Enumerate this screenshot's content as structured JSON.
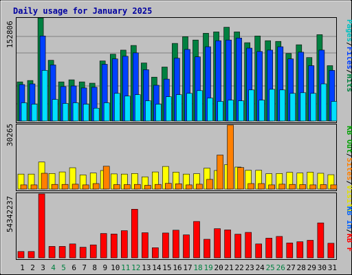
{
  "chart_data": [
    {
      "type": "bar",
      "title": "Daily usage for January 2025",
      "categories": [
        "1",
        "2",
        "3",
        "4",
        "5",
        "6",
        "7",
        "8",
        "9",
        "10",
        "11",
        "12",
        "13",
        "14",
        "15",
        "16",
        "17",
        "18",
        "19",
        "20",
        "21",
        "22",
        "23",
        "24",
        "25",
        "26",
        "27",
        "28",
        "29",
        "30",
        "31"
      ],
      "weekend_days": [
        "4",
        "5",
        "11",
        "12",
        "18",
        "19",
        "25",
        "26"
      ],
      "ytick_label": "152806",
      "ylim": [
        0,
        152806
      ],
      "series": [
        {
          "name": "Hits",
          "color": "#008040",
          "values": [
            58000,
            60000,
            152806,
            90000,
            58000,
            61000,
            58000,
            56000,
            89000,
            99000,
            105000,
            112000,
            86000,
            65000,
            80000,
            115000,
            125000,
            120000,
            130000,
            132000,
            139000,
            132000,
            116000,
            126000,
            119000,
            118000,
            100000,
            113000,
            94000,
            128000,
            82000
          ]
        },
        {
          "name": "Files",
          "color": "#0040ff",
          "values": [
            54000,
            55000,
            126000,
            83000,
            51000,
            52000,
            49000,
            50000,
            84000,
            92000,
            96000,
            101000,
            76000,
            53000,
            62000,
            93000,
            106000,
            95000,
            110000,
            119000,
            120000,
            123000,
            108000,
            103000,
            105000,
            110000,
            92000,
            102000,
            82000,
            105000,
            75000
          ]
        },
        {
          "name": "Pages",
          "color": "#00e0ff",
          "values": [
            27000,
            25000,
            75000,
            32000,
            26000,
            27000,
            25000,
            19000,
            27000,
            41000,
            37000,
            39000,
            30000,
            25000,
            36000,
            39000,
            41000,
            45000,
            34000,
            29000,
            31000,
            30000,
            46000,
            31000,
            47000,
            46000,
            41000,
            42000,
            41000,
            55000,
            29000
          ]
        }
      ],
      "right_legend": [
        {
          "text": "Pages",
          "color": "#00c0c0"
        },
        {
          "text": "/",
          "color": "#000000"
        },
        {
          "text": "Files",
          "color": "#0040ff"
        },
        {
          "text": "/",
          "color": "#000000"
        },
        {
          "text": "Hits",
          "color": "#008040"
        }
      ]
    },
    {
      "type": "bar",
      "ytick_label": "30265",
      "ylim": [
        0,
        30265
      ],
      "series": [
        {
          "name": "Visits",
          "color": "#ffff00",
          "values": [
            7100,
            7100,
            12800,
            7400,
            8100,
            10100,
            6700,
            7600,
            8800,
            7200,
            7100,
            7400,
            5800,
            8100,
            10700,
            8000,
            7100,
            7300,
            9900,
            8800,
            11600,
            10400,
            8900,
            8900,
            7300,
            7400,
            7900,
            7600,
            8000,
            7500,
            6800
          ]
        },
        {
          "name": "Sites",
          "color": "#ff8000",
          "values": [
            2000,
            2000,
            7500,
            2200,
            2200,
            2300,
            2000,
            2600,
            10800,
            2100,
            2100,
            2200,
            1800,
            2200,
            2700,
            2500,
            2000,
            2300,
            4600,
            16100,
            30265,
            10200,
            2600,
            2600,
            2000,
            2300,
            2200,
            2100,
            2000,
            2100,
            2000
          ]
        }
      ],
      "right_legend": [
        {
          "text": "KB Out",
          "color": "#00a000"
        },
        {
          "text": "/",
          "color": "#000000"
        },
        {
          "text": "Sites",
          "color": "#ff8000"
        },
        {
          "text": "/",
          "color": "#000000"
        },
        {
          "text": "Visits",
          "color": "#e0e000"
        }
      ]
    },
    {
      "type": "bar",
      "ytick_label": "54342237",
      "ylim": [
        0,
        54342237
      ],
      "series": [
        {
          "name": "KB F",
          "color": "#ff0000",
          "values": [
            5400000,
            5400000,
            54342237,
            9700000,
            9700000,
            11800000,
            9000000,
            11000000,
            20700000,
            20200000,
            23100000,
            41300000,
            21300000,
            8600000,
            21100000,
            23500000,
            19500000,
            30900000,
            15800000,
            24800000,
            23700000,
            20100000,
            21600000,
            11800000,
            16700000,
            18200000,
            12600000,
            13700000,
            14900000,
            29700000,
            12400000
          ]
        }
      ],
      "right_legend": [
        {
          "text": "KB In",
          "color": "#0060ff"
        },
        {
          "text": "/",
          "color": "#000000"
        },
        {
          "text": "KB F",
          "color": "#ff0000"
        }
      ]
    }
  ]
}
